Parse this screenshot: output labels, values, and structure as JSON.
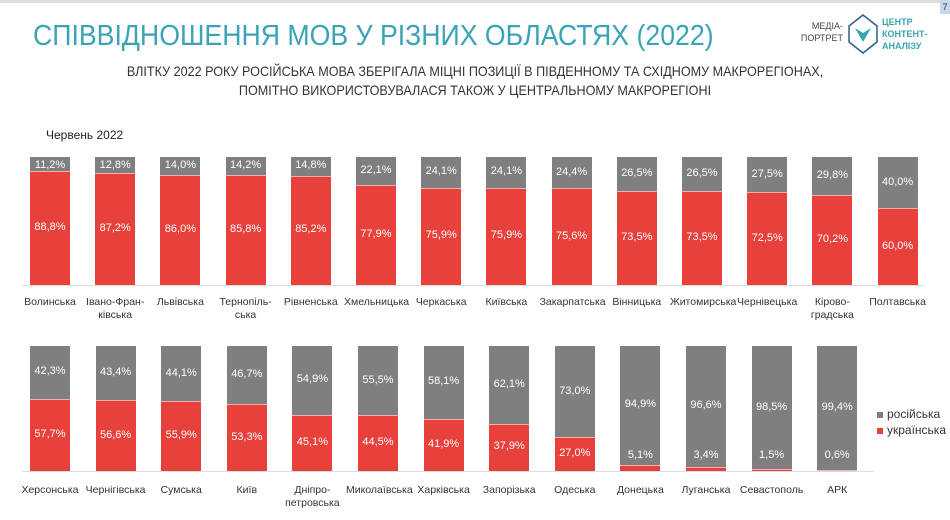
{
  "page_number": "7",
  "title": "СПІВВІДНОШЕННЯ МОВ У РІЗНИХ ОБЛАСТЯХ (2022)",
  "subtitle": "ВЛІТКУ 2022 РОКУ РОСІЙСЬКА МОВА ЗБЕРІГАЛА МІЦНІ ПОЗИЦІЇ В ПІВДЕННОМУ ТА СХІДНОМУ МАКРОРЕГІОНАХ,\nПОМІТНО ВИКОРИСТОВУВАЛАСЯ ТАКОЖ У ЦЕНТРАЛЬНОМУ МАКРОРЕГІОНІ",
  "logo": {
    "media": "МЕДІА-\nПОРТРЕТ",
    "center": "ЦЕНТР\nКОНТЕНТ-\nАНАЛІЗУ"
  },
  "chart_data": {
    "type": "bar",
    "stacked": true,
    "percent": true,
    "subtitle": "Червень 2022",
    "ylim": [
      0,
      100
    ],
    "colors": {
      "російська": "#7f7f7f",
      "українська": "#e8403a"
    },
    "legend": [
      "російська",
      "українська"
    ],
    "legend_position": "right",
    "rows": [
      {
        "categories": [
          "Волинська",
          "Івано-Фран-\nківська",
          "Львівська",
          "Тернопіль-\nська",
          "Рівненська",
          "Хмельницька",
          "Черкаська",
          "Київська",
          "Закарпатська",
          "Вінницька",
          "Житомирська",
          "Чернівецька",
          "Кірово-\nградська",
          "Полтавська"
        ],
        "series": [
          {
            "name": "українська",
            "values": [
              88.8,
              87.2,
              86.0,
              85.8,
              85.2,
              77.9,
              75.9,
              75.9,
              75.6,
              73.5,
              73.5,
              72.5,
              70.2,
              60.0
            ]
          },
          {
            "name": "російська",
            "values": [
              11.2,
              12.8,
              14.0,
              14.2,
              14.8,
              22.1,
              24.1,
              24.1,
              24.4,
              26.5,
              26.5,
              27.5,
              29.8,
              40.0
            ]
          }
        ]
      },
      {
        "categories": [
          "Херсонська",
          "Чернігівська",
          "Сумська",
          "Київ",
          "Дніпро-\nпетровська",
          "Миколаївська",
          "Харківська",
          "Запорізька",
          "Одеська",
          "Донецька",
          "Луганська",
          "Севастополь",
          "АРК"
        ],
        "series": [
          {
            "name": "українська",
            "values": [
              57.7,
              56.6,
              55.9,
              53.3,
              45.1,
              44.5,
              41.9,
              37.9,
              27.0,
              5.1,
              3.4,
              1.5,
              0.6
            ]
          },
          {
            "name": "російська",
            "values": [
              42.3,
              43.4,
              44.1,
              46.7,
              54.9,
              55.5,
              58.1,
              62.1,
              73.0,
              94.9,
              96.6,
              98.5,
              99.4
            ]
          }
        ]
      }
    ]
  }
}
